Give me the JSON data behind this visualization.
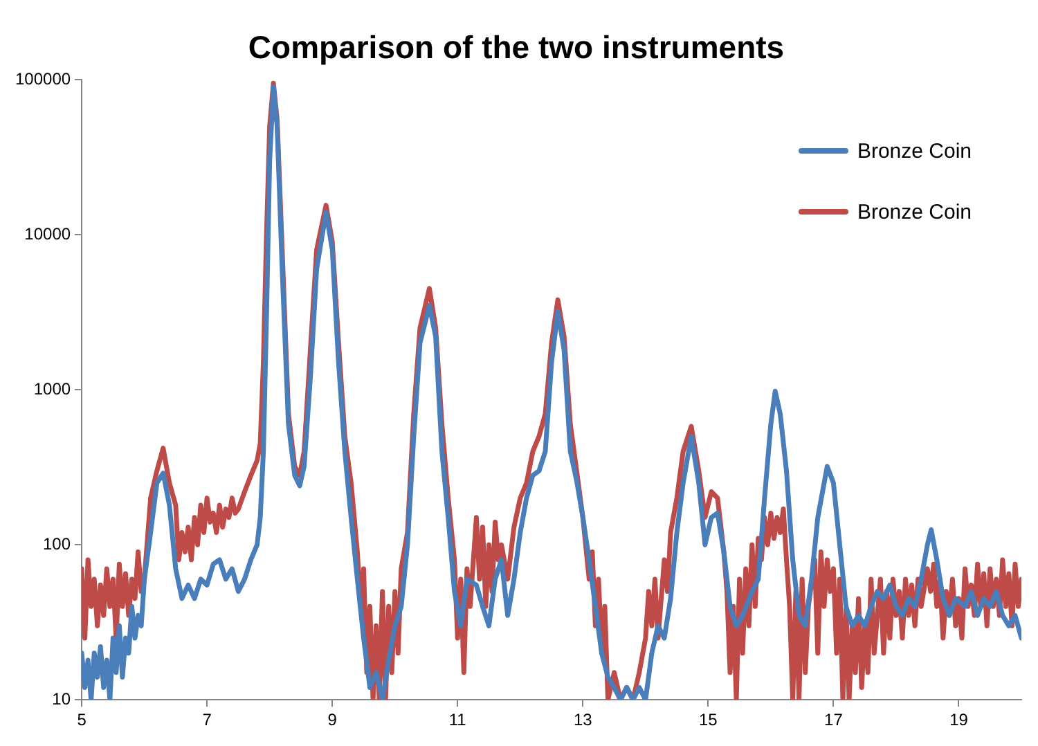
{
  "chart_data": {
    "type": "line",
    "title": "Comparison of the two instruments",
    "xlim": [
      5,
      20
    ],
    "xticks": [
      5,
      7,
      9,
      11,
      13,
      15,
      17,
      19
    ],
    "ylim": [
      10,
      100000
    ],
    "yticks": [
      10,
      100,
      1000,
      10000,
      100000
    ],
    "log": "y",
    "grid": false,
    "legend": "top right",
    "marker": "none",
    "line_style": "solid",
    "series": [
      {
        "name": "Bronze Coin",
        "color": "#4a7ebb",
        "x": [
          5.0,
          5.05,
          5.1,
          5.15,
          5.2,
          5.25,
          5.3,
          5.35,
          5.4,
          5.45,
          5.5,
          5.55,
          5.6,
          5.65,
          5.7,
          5.75,
          5.8,
          5.85,
          5.9,
          5.95,
          6.0,
          6.1,
          6.2,
          6.3,
          6.4,
          6.5,
          6.6,
          6.7,
          6.8,
          6.9,
          7.0,
          7.1,
          7.2,
          7.3,
          7.4,
          7.5,
          7.6,
          7.7,
          7.8,
          7.85,
          7.9,
          7.95,
          8.0,
          8.06,
          8.12,
          8.2,
          8.3,
          8.4,
          8.48,
          8.55,
          8.65,
          8.75,
          8.9,
          9.0,
          9.1,
          9.2,
          9.3,
          9.4,
          9.5,
          9.6,
          9.7,
          9.8,
          9.9,
          10.0,
          10.1,
          10.2,
          10.3,
          10.4,
          10.55,
          10.65,
          10.75,
          10.85,
          10.95,
          11.05,
          11.15,
          11.3,
          11.4,
          11.5,
          11.6,
          11.7,
          11.8,
          11.9,
          12.0,
          12.1,
          12.2,
          12.3,
          12.4,
          12.5,
          12.6,
          12.7,
          12.8,
          12.9,
          13.0,
          13.1,
          13.2,
          13.3,
          13.4,
          13.5,
          13.6,
          13.7,
          13.8,
          13.9,
          14.0,
          14.1,
          14.2,
          14.3,
          14.4,
          14.5,
          14.6,
          14.73,
          14.85,
          14.95,
          15.05,
          15.15,
          15.25,
          15.35,
          15.45,
          15.55,
          15.7,
          15.8,
          15.9,
          16.0,
          16.07,
          16.15,
          16.25,
          16.35,
          16.45,
          16.55,
          16.65,
          16.75,
          16.9,
          17.0,
          17.1,
          17.2,
          17.3,
          17.4,
          17.5,
          17.6,
          17.7,
          17.8,
          17.9,
          18.0,
          18.1,
          18.2,
          18.3,
          18.4,
          18.5,
          18.56,
          18.65,
          18.75,
          18.85,
          18.95,
          19.1,
          19.2,
          19.3,
          19.4,
          19.5,
          19.6,
          19.7,
          19.8,
          19.9,
          20.0
        ],
        "values": [
          20,
          12,
          18,
          10,
          20,
          14,
          22,
          12,
          18,
          10,
          25,
          15,
          30,
          14,
          25,
          20,
          40,
          25,
          35,
          30,
          60,
          120,
          250,
          290,
          180,
          70,
          45,
          55,
          45,
          60,
          55,
          75,
          80,
          60,
          70,
          50,
          60,
          80,
          100,
          150,
          400,
          3000,
          30000,
          90000,
          50000,
          6000,
          600,
          280,
          240,
          320,
          1200,
          6000,
          14000,
          8000,
          1500,
          400,
          150,
          60,
          25,
          12,
          15,
          10,
          18,
          30,
          40,
          100,
          500,
          2000,
          3500,
          2200,
          400,
          150,
          50,
          30,
          60,
          55,
          40,
          30,
          60,
          80,
          35,
          60,
          120,
          200,
          280,
          300,
          400,
          1500,
          3200,
          1800,
          400,
          260,
          150,
          80,
          40,
          20,
          14,
          12,
          10,
          12,
          10,
          12,
          10,
          20,
          30,
          25,
          45,
          120,
          250,
          500,
          250,
          100,
          150,
          160,
          90,
          40,
          30,
          35,
          50,
          60,
          200,
          600,
          980,
          700,
          300,
          80,
          35,
          30,
          60,
          150,
          320,
          250,
          100,
          40,
          30,
          35,
          30,
          40,
          50,
          45,
          55,
          40,
          35,
          45,
          40,
          60,
          100,
          125,
          80,
          45,
          35,
          45,
          40,
          50,
          35,
          45,
          40,
          50,
          35,
          30,
          35,
          25
        ]
      },
      {
        "name": "Bronze Coin",
        "color": "#be4b48",
        "x": [
          5.0,
          5.05,
          5.1,
          5.15,
          5.2,
          5.25,
          5.3,
          5.35,
          5.4,
          5.45,
          5.5,
          5.55,
          5.6,
          5.65,
          5.7,
          5.75,
          5.8,
          5.85,
          5.9,
          5.95,
          6.0,
          6.1,
          6.2,
          6.3,
          6.4,
          6.5,
          6.55,
          6.6,
          6.65,
          6.7,
          6.75,
          6.8,
          6.85,
          6.9,
          6.95,
          7.0,
          7.05,
          7.1,
          7.15,
          7.2,
          7.25,
          7.3,
          7.35,
          7.4,
          7.45,
          7.5,
          7.6,
          7.7,
          7.8,
          7.85,
          7.9,
          7.95,
          8.0,
          8.06,
          8.12,
          8.2,
          8.3,
          8.4,
          8.48,
          8.55,
          8.65,
          8.75,
          8.9,
          9.0,
          9.1,
          9.2,
          9.3,
          9.4,
          9.45,
          9.5,
          9.55,
          9.6,
          9.65,
          9.7,
          9.75,
          9.8,
          9.85,
          9.9,
          9.95,
          10.0,
          10.05,
          10.1,
          10.2,
          10.3,
          10.4,
          10.55,
          10.65,
          10.75,
          10.85,
          10.95,
          11.0,
          11.05,
          11.1,
          11.15,
          11.2,
          11.3,
          11.35,
          11.4,
          11.45,
          11.5,
          11.55,
          11.6,
          11.65,
          11.7,
          11.8,
          11.9,
          12.0,
          12.1,
          12.2,
          12.3,
          12.4,
          12.5,
          12.6,
          12.7,
          12.8,
          12.9,
          13.0,
          13.1,
          13.15,
          13.2,
          13.25,
          13.3,
          13.35,
          13.4,
          13.5,
          13.6,
          13.7,
          13.8,
          13.9,
          14.0,
          14.05,
          14.1,
          14.15,
          14.2,
          14.3,
          14.35,
          14.4,
          14.5,
          14.6,
          14.73,
          14.85,
          14.95,
          15.05,
          15.15,
          15.25,
          15.3,
          15.35,
          15.4,
          15.45,
          15.5,
          15.55,
          15.6,
          15.65,
          15.7,
          15.75,
          15.8,
          15.85,
          15.9,
          15.95,
          16.0,
          16.05,
          16.1,
          16.15,
          16.2,
          16.25,
          16.3,
          16.35,
          16.4,
          16.45,
          16.5,
          16.55,
          16.6,
          16.7,
          16.75,
          16.8,
          16.85,
          16.9,
          16.95,
          17.0,
          17.05,
          17.1,
          17.15,
          17.2,
          17.25,
          17.3,
          17.35,
          17.4,
          17.45,
          17.5,
          17.55,
          17.6,
          17.65,
          17.7,
          17.75,
          17.8,
          17.85,
          17.9,
          17.95,
          18.0,
          18.05,
          18.1,
          18.15,
          18.2,
          18.25,
          18.3,
          18.35,
          18.4,
          18.5,
          18.55,
          18.6,
          18.65,
          18.7,
          18.75,
          18.8,
          18.85,
          18.9,
          18.95,
          19.0,
          19.05,
          19.1,
          19.15,
          19.2,
          19.25,
          19.3,
          19.35,
          19.4,
          19.45,
          19.5,
          19.55,
          19.6,
          19.65,
          19.7,
          19.75,
          19.8,
          19.85,
          19.9,
          19.95,
          20.0
        ],
        "values": [
          70,
          25,
          80,
          40,
          60,
          30,
          55,
          35,
          70,
          40,
          60,
          25,
          75,
          40,
          65,
          35,
          60,
          45,
          90,
          50,
          60,
          200,
          300,
          420,
          250,
          180,
          80,
          120,
          90,
          130,
          80,
          150,
          100,
          180,
          120,
          200,
          140,
          160,
          120,
          180,
          130,
          170,
          150,
          200,
          160,
          170,
          220,
          280,
          350,
          450,
          1500,
          10000,
          50000,
          95000,
          55000,
          8000,
          700,
          320,
          280,
          400,
          1800,
          8000,
          15500,
          9000,
          2000,
          500,
          250,
          90,
          40,
          70,
          15,
          40,
          10,
          30,
          10,
          50,
          10,
          40,
          15,
          50,
          20,
          70,
          120,
          700,
          2500,
          4500,
          2500,
          600,
          200,
          80,
          25,
          60,
          15,
          70,
          40,
          150,
          60,
          130,
          40,
          100,
          50,
          140,
          80,
          100,
          60,
          130,
          200,
          250,
          400,
          500,
          700,
          2000,
          3800,
          2200,
          600,
          300,
          150,
          60,
          90,
          30,
          60,
          20,
          40,
          10,
          15,
          10,
          12,
          10,
          15,
          25,
          50,
          30,
          60,
          25,
          80,
          50,
          120,
          200,
          400,
          580,
          300,
          150,
          220,
          200,
          90,
          50,
          15,
          40,
          10,
          60,
          20,
          70,
          30,
          100,
          40,
          110,
          80,
          150,
          100,
          160,
          110,
          150,
          120,
          170,
          80,
          40,
          10,
          50,
          10,
          60,
          15,
          40,
          80,
          20,
          90,
          40,
          80,
          50,
          70,
          20,
          60,
          10,
          40,
          10,
          30,
          15,
          45,
          12,
          30,
          15,
          60,
          20,
          35,
          60,
          20,
          50,
          25,
          60,
          35,
          50,
          25,
          60,
          35,
          55,
          30,
          60,
          40,
          70,
          50,
          75,
          40,
          60,
          25,
          50,
          35,
          60,
          30,
          45,
          25,
          70,
          40,
          55,
          35,
          75,
          40,
          65,
          30,
          70,
          40,
          60,
          35,
          80,
          40,
          65,
          30,
          75,
          40,
          60
        ]
      }
    ]
  }
}
